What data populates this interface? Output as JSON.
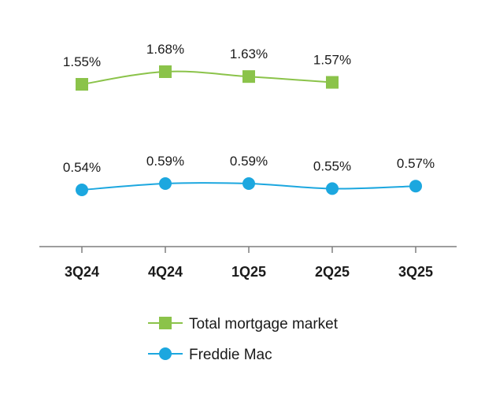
{
  "chart_data": {
    "type": "line",
    "categories": [
      "3Q24",
      "4Q24",
      "1Q25",
      "2Q25",
      "3Q25"
    ],
    "series": [
      {
        "name": "Total mortgage market",
        "values": [
          1.55,
          1.68,
          1.63,
          1.57,
          null
        ],
        "labels": [
          "1.55%",
          "1.68%",
          "1.63%",
          "1.57%",
          null
        ],
        "color": "#8bc34a",
        "marker": "square"
      },
      {
        "name": "Freddie Mac",
        "values": [
          0.54,
          0.59,
          0.59,
          0.55,
          0.57
        ],
        "labels": [
          "0.54%",
          "0.59%",
          "0.59%",
          "0.55%",
          "0.57%"
        ],
        "color": "#1ca7df",
        "marker": "circle"
      }
    ],
    "axis_color": "#7f7f7f",
    "legend_position": "bottom-center",
    "grid": false
  }
}
